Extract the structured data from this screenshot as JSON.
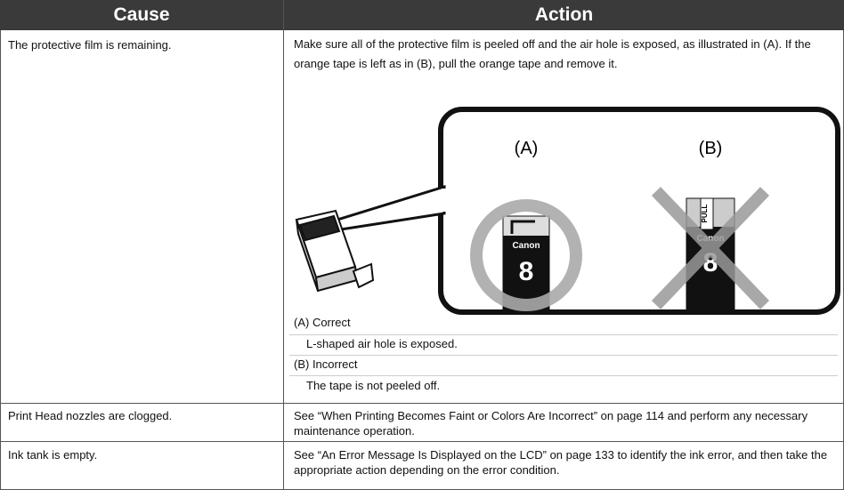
{
  "table": {
    "headers": [
      "Cause",
      "Action"
    ],
    "rows": [
      {
        "cause": "The protective film is remaining.",
        "action": "Make sure all of the protective film is peeled off and the air hole is exposed, as illustrated in (A). If the orange tape is left as in (B), pull the orange tape and remove it.",
        "notes": [
          {
            "label": "(A) Correct",
            "detail": "L-shaped air hole is exposed."
          },
          {
            "label": "(B) Incorrect",
            "detail": "The tape is not peeled off."
          }
        ]
      },
      {
        "cause": "Print Head nozzles are clogged.",
        "action": "See “When Printing Becomes Faint or Colors Are Incorrect” on page 114 and perform any necessary maintenance operation."
      },
      {
        "cause": "Ink tank is empty.",
        "action": "See “An Error Message Is Displayed on the LCD” on page 133 to identify the ink error, and then take the appropriate action depending on the error condition."
      }
    ]
  },
  "figure": {
    "labels": [
      "(A)",
      "(B)"
    ],
    "brand": "Canon",
    "number": "8",
    "pull": "PULL"
  }
}
